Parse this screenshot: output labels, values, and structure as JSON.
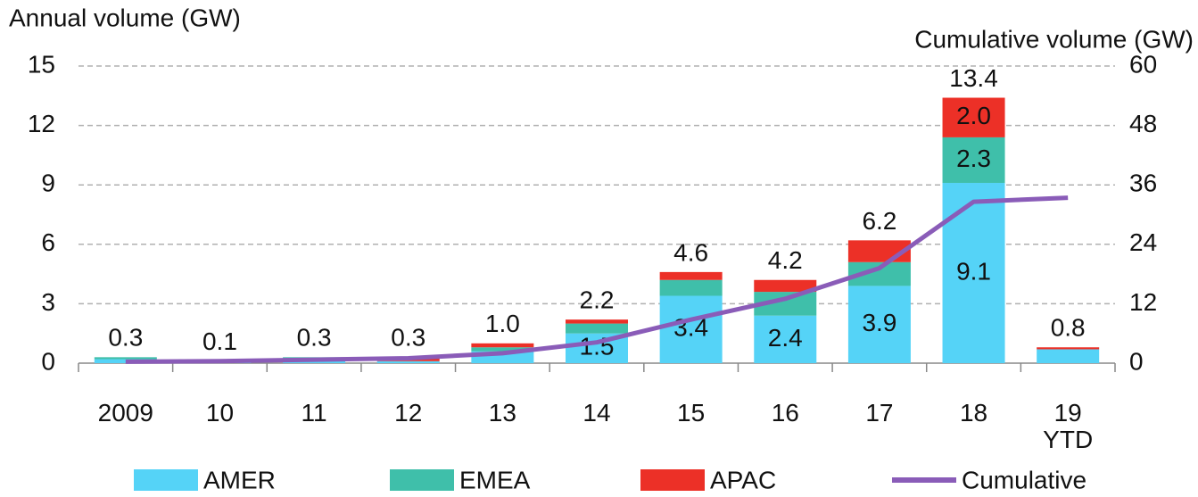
{
  "chart_data": {
    "type": "bar",
    "stacked": true,
    "y_label": "Annual volume (GW)",
    "y2_label": "Cumulative volume (GW)",
    "categories": [
      "2009",
      "10",
      "11",
      "12",
      "13",
      "14",
      "15",
      "16",
      "17",
      "18",
      "19 YTD"
    ],
    "series": [
      {
        "name": "AMER",
        "color": "#55d3f7",
        "values": [
          0.2,
          0.1,
          0.2,
          0.1,
          0.6,
          1.5,
          3.4,
          2.4,
          3.9,
          9.1,
          0.7
        ],
        "value_labels": [
          null,
          null,
          null,
          null,
          null,
          "1.5",
          "3.4",
          "2.4",
          "3.9",
          "9.1",
          null
        ]
      },
      {
        "name": "EMEA",
        "color": "#3fbfaa",
        "values": [
          0.1,
          0,
          0.1,
          0,
          0.2,
          0.5,
          0.8,
          1.2,
          1.2,
          2.3,
          0
        ],
        "value_labels": [
          null,
          null,
          null,
          null,
          null,
          null,
          null,
          null,
          null,
          "2.3",
          null
        ]
      },
      {
        "name": "APAC",
        "color": "#ec3027",
        "values": [
          0,
          0,
          0,
          0.2,
          0.2,
          0.2,
          0.4,
          0.6,
          1.1,
          2.0,
          0.1
        ],
        "value_labels": [
          null,
          null,
          null,
          null,
          null,
          null,
          null,
          null,
          null,
          "2.0",
          null
        ]
      },
      {
        "name": "Cumulative",
        "type": "line",
        "axis": "y2",
        "color": "#8a5cb8",
        "values": [
          0.3,
          0.4,
          0.7,
          1.0,
          2.0,
          4.2,
          8.8,
          13.0,
          19.2,
          32.6,
          33.4
        ]
      }
    ],
    "totals": {
      "values": [
        0.3,
        0.1,
        0.3,
        0.3,
        1.0,
        2.2,
        4.6,
        4.2,
        6.2,
        13.4,
        0.8
      ],
      "value_labels": [
        "0.3",
        "0.1",
        "0.3",
        "0.3",
        "1.0",
        "2.2",
        "4.6",
        "4.2",
        "6.2",
        "13.4",
        "0.8"
      ]
    },
    "ylim": [
      0,
      15
    ],
    "yticks": [
      0,
      3,
      6,
      9,
      12,
      15
    ],
    "y2lim": [
      0,
      60
    ],
    "y2ticks": [
      0,
      12,
      24,
      36,
      48,
      60
    ],
    "grid": true,
    "legend": "bottom"
  }
}
